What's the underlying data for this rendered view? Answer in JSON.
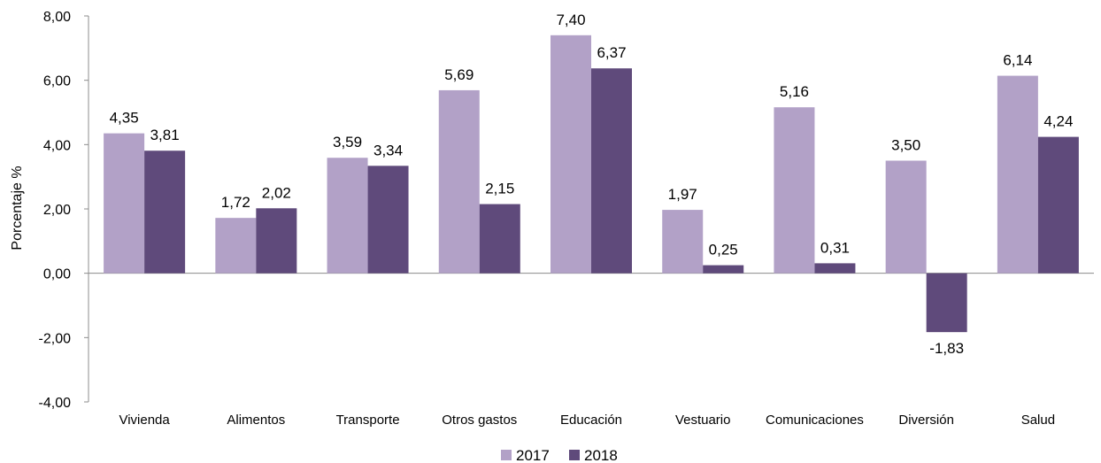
{
  "chart_data": {
    "type": "bar",
    "ylabel": "Porcentaje %",
    "ylim": [
      -4,
      8
    ],
    "yticks": [
      -4,
      -2,
      0,
      2,
      4,
      6,
      8
    ],
    "ytick_labels": [
      "-4,00",
      "-2,00",
      "0,00",
      "2,00",
      "4,00",
      "6,00",
      "8,00"
    ],
    "categories": [
      "Vivienda",
      "Alimentos",
      "Transporte",
      "Otros gastos",
      "Educación",
      "Vestuario",
      "Comunicaciones",
      "Diversión",
      "Salud"
    ],
    "series": [
      {
        "name": "2017",
        "color": "#b2a1c7",
        "values": [
          4.35,
          1.72,
          3.59,
          5.69,
          7.4,
          1.97,
          5.16,
          3.5,
          6.14
        ],
        "labels": [
          "4,35",
          "1,72",
          "3,59",
          "5,69",
          "7,40",
          "1,97",
          "5,16",
          "3,50",
          "6,14"
        ]
      },
      {
        "name": "2018",
        "color": "#5f4a7b",
        "values": [
          3.81,
          2.02,
          3.34,
          2.15,
          6.37,
          0.25,
          0.31,
          -1.83,
          4.24
        ],
        "labels": [
          "3,81",
          "2,02",
          "3,34",
          "2,15",
          "6,37",
          "0,25",
          "0,31",
          "-1,83",
          "4,24"
        ]
      }
    ],
    "grid": false,
    "legend_position": "bottom"
  }
}
